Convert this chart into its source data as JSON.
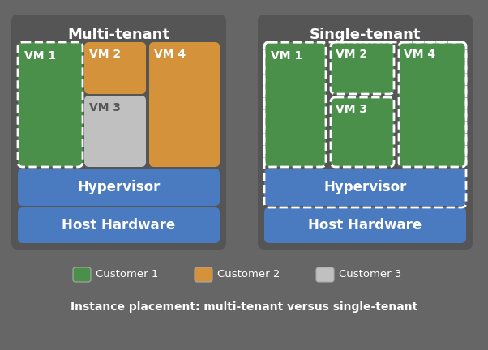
{
  "background_color": "#666666",
  "title_color": "#ffffff",
  "green_color": "#4a8f4a",
  "orange_color": "#d4923a",
  "gray_color": "#c0c0c0",
  "blue_color": "#4a7abf",
  "multi_tenant_title": "Multi-tenant",
  "single_tenant_title": "Single-tenant",
  "hypervisor_label": "Hypervisor",
  "host_hardware_label": "Host Hardware",
  "legend_items": [
    "Customer 1",
    "Customer 2",
    "Customer 3"
  ],
  "legend_colors": [
    "#4a8f4a",
    "#d4923a",
    "#c0c0c0"
  ],
  "caption": "Instance placement: multi-tenant versus single-tenant",
  "font_size_title": 13,
  "font_size_vm": 10,
  "font_size_layer": 12,
  "font_size_caption": 10
}
